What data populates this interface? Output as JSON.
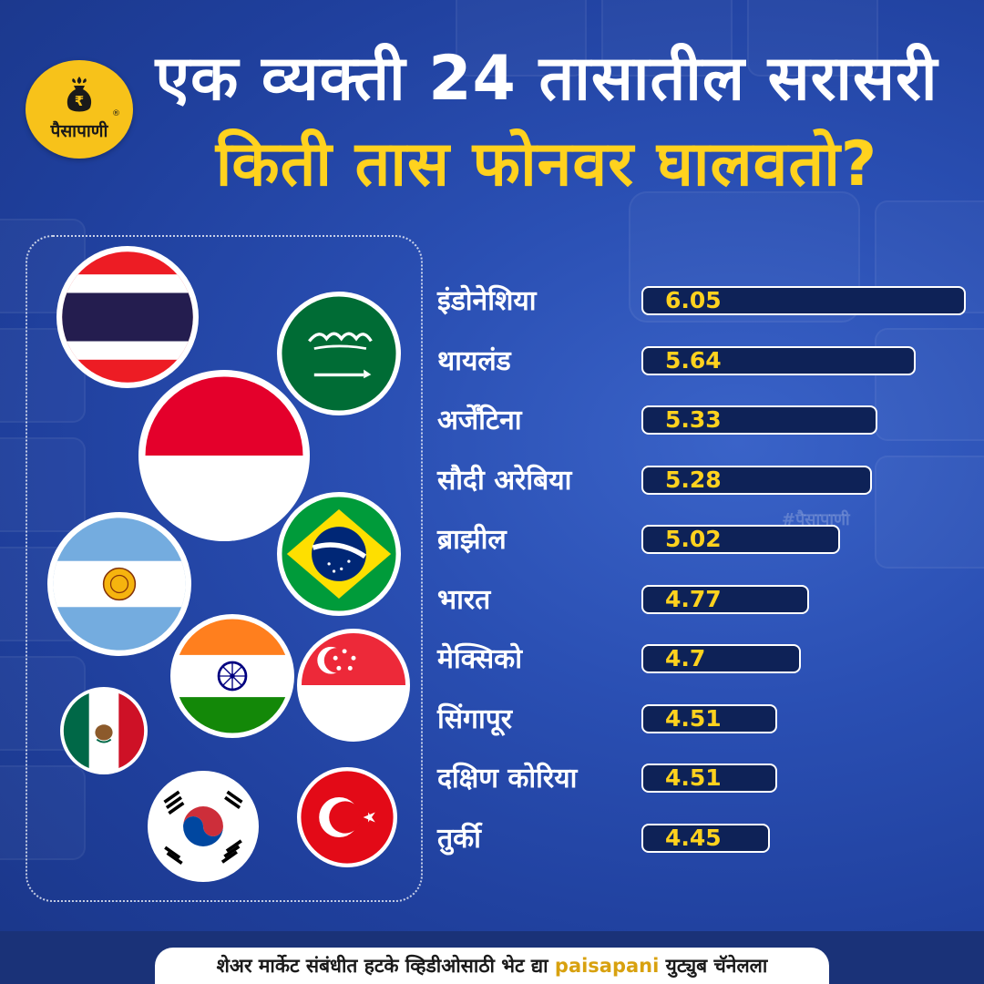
{
  "brand": {
    "logo_text": "पैसापाणी",
    "registered": "®",
    "watermark": "#पैसापाणी"
  },
  "title": {
    "line1": "एक व्यक्ती 24 तासातील सरासरी",
    "line2": "किती तास फोनवर घालवतो?"
  },
  "chart_data": {
    "type": "bar",
    "orientation": "horizontal",
    "categories": [
      "इंडोनेशिया",
      "थायलंड",
      "अर्जेंटिना",
      "सौदी अरेबिया",
      "ब्राझील",
      "भारत",
      "मेक्सिको",
      "सिंगापूर",
      "दक्षिण कोरिया",
      "तुर्की"
    ],
    "value_labels": [
      "6.05",
      "5.64",
      "5.33",
      "5.28",
      "5.02",
      "4.77",
      "4.7",
      "4.51",
      "4.51",
      "4.45"
    ],
    "values": [
      6.05,
      5.64,
      5.33,
      5.28,
      5.02,
      4.77,
      4.7,
      4.51,
      4.51,
      4.45
    ],
    "title": "",
    "xlabel": "",
    "ylabel": "",
    "grid": false,
    "bar_fill": "#0e2257",
    "bar_border": "#ffffff",
    "value_color": "#ffd21e",
    "label_color": "#ffffff"
  },
  "flags": [
    "thailand-flag-icon",
    "saudi-arabia-flag-icon",
    "indonesia-flag-icon",
    "brazil-flag-icon",
    "argentina-flag-icon",
    "india-flag-icon",
    "singapore-flag-icon",
    "mexico-flag-icon",
    "south-korea-flag-icon",
    "turkey-flag-icon"
  ],
  "footer": {
    "before": "शेअर मार्केट संबंधीत हटके व्हिडीओसाठी भेट द्या ",
    "brand": "paisapani",
    "after": " युट्युब चॅनेलला"
  },
  "colors": {
    "background": "#2a4fb3",
    "title_accent": "#ffd21e",
    "logo": "#f7c21a"
  }
}
